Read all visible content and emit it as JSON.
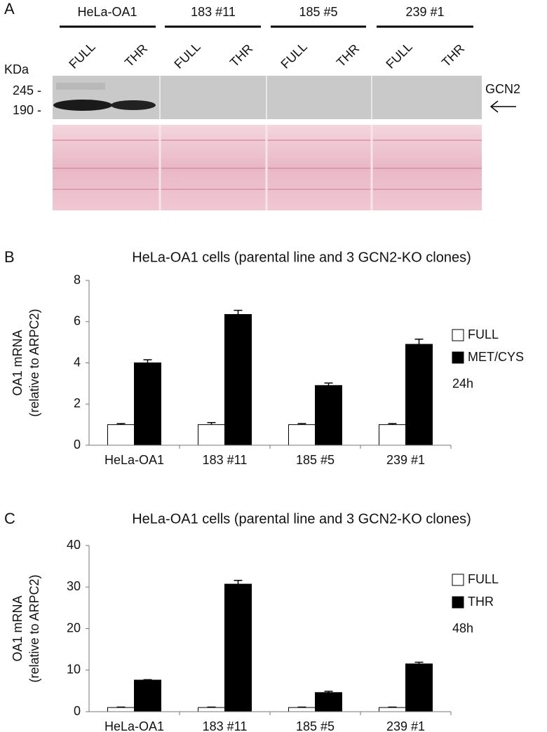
{
  "panel_a": {
    "panel_label": "A",
    "groups": [
      "HeLa-OA1",
      "183 #11",
      "185 #5",
      "239 #1"
    ],
    "lanes": [
      "FULL",
      "THR",
      "FULL",
      "THR",
      "FULL",
      "THR",
      "FULL",
      "THR"
    ],
    "unit": "KDa",
    "markers": [
      "245 -",
      "190 -"
    ],
    "protein": "GCN2"
  },
  "chart_data": [
    {
      "type": "bar",
      "panel_label": "B",
      "title": "HeLa-OA1 cells (parental line and 3 GCN2-KO clones)",
      "ylabel": [
        "OA1 mRNA",
        "(relative to ARPC2)"
      ],
      "categories": [
        "HeLa-OA1",
        "183 #11",
        "185 #5",
        "239 #1"
      ],
      "series": [
        {
          "name": "FULL",
          "color": "#ffffff",
          "values": [
            1,
            1,
            1,
            1
          ],
          "errors": [
            0.05,
            0.1,
            0.05,
            0.05
          ]
        },
        {
          "name": "MET/CYS",
          "color": "#000000",
          "values": [
            4.0,
            6.35,
            2.9,
            4.9
          ],
          "errors": [
            0.15,
            0.2,
            0.12,
            0.25
          ]
        }
      ],
      "ylim": [
        0,
        8
      ],
      "yticks": [
        0,
        2,
        4,
        6,
        8
      ],
      "legend": "right",
      "annotation": "24h"
    },
    {
      "type": "bar",
      "panel_label": "C",
      "title": "HeLa-OA1 cells (parental line and 3 GCN2-KO clones)",
      "ylabel": [
        "OA1 mRNA",
        "(relative to ARPC2)"
      ],
      "categories": [
        "HeLa-OA1",
        "183 #11",
        "185 #5",
        "239 #1"
      ],
      "series": [
        {
          "name": "FULL",
          "color": "#ffffff",
          "values": [
            1,
            1,
            1,
            1
          ],
          "errors": [
            0.1,
            0.1,
            0.1,
            0.1
          ]
        },
        {
          "name": "THR",
          "color": "#000000",
          "values": [
            7.6,
            30.7,
            4.6,
            11.5
          ],
          "errors": [
            0.1,
            0.9,
            0.3,
            0.4
          ]
        }
      ],
      "ylim": [
        0,
        40
      ],
      "yticks": [
        0,
        10,
        20,
        30,
        40
      ],
      "legend": "right",
      "annotation": "48h"
    }
  ]
}
